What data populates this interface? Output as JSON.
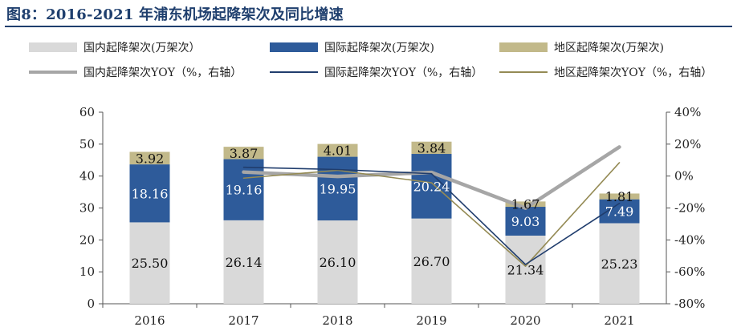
{
  "title": "图8：2016-2021 年浦东机场起降架次及同比增速",
  "colors": {
    "domestic": "#d9d9d9",
    "international": "#2e5b9a",
    "regional": "#c2b98a",
    "domestic_yoy": "#a6a6a6",
    "international_yoy": "#203d6d",
    "regional_yoy": "#948a54",
    "title": "#1f3f6e"
  },
  "legend": [
    {
      "label": "国内起降架次(万架次）",
      "type": "box",
      "color_key": "domestic"
    },
    {
      "label": "国际起降架次(万架次)",
      "type": "box",
      "color_key": "international"
    },
    {
      "label": "地区起降架次(万架次)",
      "type": "box",
      "color_key": "regional"
    },
    {
      "label": "国内起降架次YOY（%，右轴）",
      "type": "line",
      "color_key": "domestic_yoy"
    },
    {
      "label": "国际起降架次YOY（%，右轴）",
      "type": "line",
      "color_key": "international_yoy"
    },
    {
      "label": "地区起降架次YOY（%，右轴）",
      "type": "line",
      "color_key": "regional_yoy"
    }
  ],
  "chart_data": {
    "type": "bar",
    "stacked": true,
    "categories": [
      "2016",
      "2017",
      "2018",
      "2019",
      "2020",
      "2021"
    ],
    "series": [
      {
        "name": "国内起降架次(万架次）",
        "values": [
          25.5,
          26.14,
          26.1,
          26.7,
          21.34,
          25.23
        ],
        "labels": [
          "25.50",
          "26.14",
          "26.10",
          "26.70",
          "21.34",
          "25.23"
        ],
        "color_key": "domestic"
      },
      {
        "name": "国际起降架次(万架次)",
        "values": [
          18.16,
          19.16,
          19.95,
          20.24,
          9.03,
          7.49
        ],
        "labels": [
          "18.16",
          "19.16",
          "19.95",
          "20.24",
          "9.03",
          "7.49"
        ],
        "color_key": "international"
      },
      {
        "name": "地区起降架次(万架次)",
        "values": [
          3.92,
          3.87,
          4.01,
          3.84,
          1.67,
          1.81
        ],
        "labels": [
          "3.92",
          "3.87",
          "4.01",
          "3.84",
          "1.67",
          "1.81"
        ],
        "color_key": "regional"
      }
    ],
    "line_series": [
      {
        "name": "国内起降架次YOY（%，右轴）",
        "x": [
          "2017",
          "2018",
          "2019",
          "2020",
          "2021"
        ],
        "values": [
          2.5,
          -0.2,
          2.3,
          -20.1,
          18.2
        ],
        "color_key": "domestic_yoy"
      },
      {
        "name": "国际起降架次YOY（%，右轴）",
        "x": [
          "2017",
          "2018",
          "2019",
          "2020",
          "2021"
        ],
        "values": [
          5.5,
          4.1,
          1.5,
          -55.4,
          -17.1
        ],
        "color_key": "international_yoy"
      },
      {
        "name": "地区起降架次YOY（%，右轴）",
        "x": [
          "2017",
          "2018",
          "2019",
          "2020",
          "2021"
        ],
        "values": [
          -1.3,
          3.6,
          -4.2,
          -56.5,
          8.4
        ],
        "color_key": "regional_yoy"
      }
    ],
    "y_left": {
      "ylim": [
        0,
        60
      ],
      "ticks": [
        0,
        10,
        20,
        30,
        40,
        50,
        60
      ],
      "tick_labels": [
        "0",
        "10",
        "20",
        "30",
        "40",
        "50",
        "60"
      ]
    },
    "y_right": {
      "ylim": [
        -80,
        40
      ],
      "ticks": [
        -80,
        -60,
        -40,
        -20,
        0,
        20,
        40
      ],
      "tick_labels": [
        "-80%",
        "-60%",
        "-40%",
        "-20%",
        "0%",
        "20%",
        "40%"
      ]
    },
    "grid": false,
    "legend_position": "top"
  }
}
